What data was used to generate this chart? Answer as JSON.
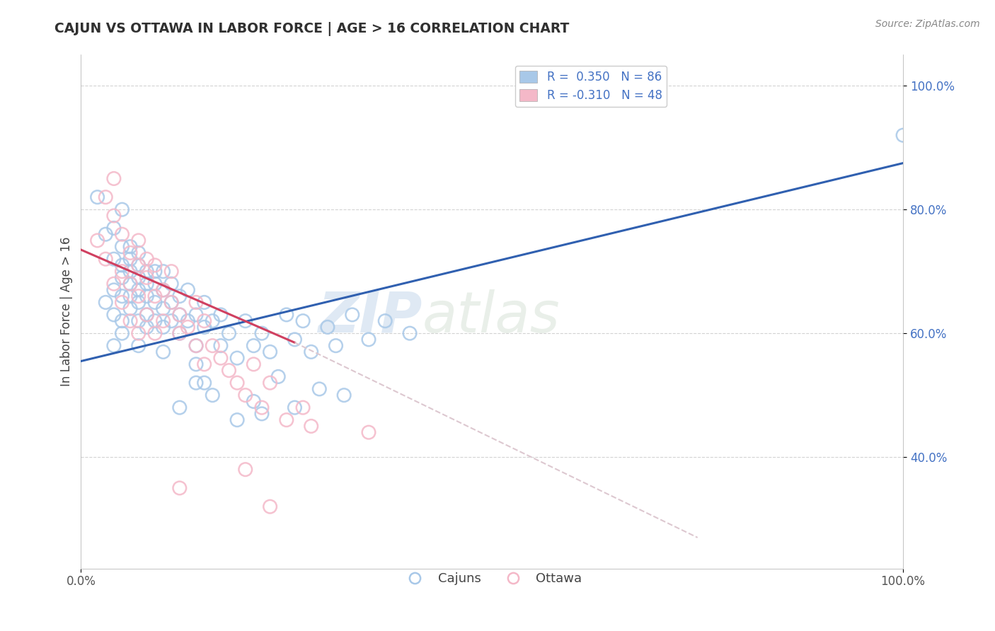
{
  "title": "CAJUN VS OTTAWA IN LABOR FORCE | AGE > 16 CORRELATION CHART",
  "ylabel": "In Labor Force | Age > 16",
  "source": "Source: ZipAtlas.com",
  "watermark_zip": "ZIP",
  "watermark_atlas": "atlas",
  "xlim": [
    0.0,
    1.0
  ],
  "ylim": [
    0.22,
    1.05
  ],
  "cajuns_R": 0.35,
  "cajuns_N": 86,
  "ottawa_R": -0.31,
  "ottawa_N": 48,
  "cajuns_color": "#a8c8e8",
  "ottawa_color": "#f4b8c8",
  "cajuns_line_color": "#3060b0",
  "ottawa_line_color": "#d04060",
  "ottawa_dashed_color": "#ddc8d0",
  "background_color": "#ffffff",
  "grid_color": "#c8c8c8",
  "title_color": "#303030",
  "source_color": "#888888",
  "ytick_color": "#4472c4",
  "xtick_color": "#555555",
  "cajuns_x": [
    0.02,
    0.03,
    0.03,
    0.04,
    0.04,
    0.04,
    0.04,
    0.04,
    0.05,
    0.05,
    0.05,
    0.05,
    0.05,
    0.05,
    0.05,
    0.06,
    0.06,
    0.06,
    0.06,
    0.06,
    0.06,
    0.07,
    0.07,
    0.07,
    0.07,
    0.07,
    0.07,
    0.07,
    0.08,
    0.08,
    0.08,
    0.08,
    0.08,
    0.09,
    0.09,
    0.09,
    0.09,
    0.1,
    0.1,
    0.1,
    0.1,
    0.1,
    0.11,
    0.11,
    0.11,
    0.12,
    0.12,
    0.12,
    0.13,
    0.13,
    0.14,
    0.14,
    0.14,
    0.15,
    0.15,
    0.15,
    0.16,
    0.17,
    0.17,
    0.18,
    0.19,
    0.2,
    0.21,
    0.22,
    0.23,
    0.25,
    0.26,
    0.27,
    0.28,
    0.3,
    0.31,
    0.33,
    0.35,
    0.37,
    0.4,
    0.22,
    0.12,
    0.14,
    0.16,
    0.19,
    0.21,
    0.24,
    0.26,
    0.29,
    0.32,
    1.0
  ],
  "cajuns_y": [
    0.82,
    0.76,
    0.65,
    0.72,
    0.67,
    0.63,
    0.77,
    0.58,
    0.69,
    0.74,
    0.62,
    0.66,
    0.71,
    0.6,
    0.8,
    0.68,
    0.72,
    0.64,
    0.7,
    0.66,
    0.74,
    0.67,
    0.62,
    0.71,
    0.65,
    0.69,
    0.73,
    0.58,
    0.66,
    0.7,
    0.63,
    0.68,
    0.61,
    0.65,
    0.7,
    0.62,
    0.68,
    0.64,
    0.67,
    0.61,
    0.7,
    0.57,
    0.65,
    0.62,
    0.68,
    0.6,
    0.66,
    0.63,
    0.62,
    0.67,
    0.58,
    0.63,
    0.55,
    0.61,
    0.65,
    0.52,
    0.62,
    0.58,
    0.63,
    0.6,
    0.56,
    0.62,
    0.58,
    0.6,
    0.57,
    0.63,
    0.59,
    0.62,
    0.57,
    0.61,
    0.58,
    0.63,
    0.59,
    0.62,
    0.6,
    0.47,
    0.48,
    0.52,
    0.5,
    0.46,
    0.49,
    0.53,
    0.48,
    0.51,
    0.5,
    0.92
  ],
  "ottawa_x": [
    0.02,
    0.03,
    0.03,
    0.04,
    0.04,
    0.04,
    0.05,
    0.05,
    0.05,
    0.06,
    0.06,
    0.06,
    0.07,
    0.07,
    0.07,
    0.07,
    0.08,
    0.08,
    0.08,
    0.09,
    0.09,
    0.09,
    0.1,
    0.1,
    0.11,
    0.11,
    0.12,
    0.12,
    0.13,
    0.14,
    0.14,
    0.15,
    0.15,
    0.16,
    0.17,
    0.18,
    0.19,
    0.2,
    0.21,
    0.22,
    0.23,
    0.25,
    0.27,
    0.28,
    0.2,
    0.12,
    0.35,
    0.23
  ],
  "ottawa_y": [
    0.75,
    0.82,
    0.72,
    0.79,
    0.68,
    0.85,
    0.76,
    0.7,
    0.65,
    0.73,
    0.68,
    0.62,
    0.71,
    0.66,
    0.75,
    0.6,
    0.69,
    0.63,
    0.72,
    0.66,
    0.71,
    0.6,
    0.67,
    0.62,
    0.65,
    0.7,
    0.6,
    0.63,
    0.61,
    0.58,
    0.65,
    0.55,
    0.62,
    0.58,
    0.56,
    0.54,
    0.52,
    0.5,
    0.55,
    0.48,
    0.52,
    0.46,
    0.48,
    0.45,
    0.38,
    0.35,
    0.44,
    0.32
  ],
  "blue_line_x0": 0.0,
  "blue_line_y0": 0.555,
  "blue_line_x1": 1.0,
  "blue_line_y1": 0.875,
  "ottawa_solid_line_x0": 0.0,
  "ottawa_solid_line_y0": 0.735,
  "ottawa_solid_line_x1": 0.26,
  "ottawa_solid_line_y1": 0.585,
  "ottawa_dash_line_x0": 0.26,
  "ottawa_dash_line_y0": 0.585,
  "ottawa_dash_line_x1": 0.75,
  "ottawa_dash_line_y1": 0.27
}
